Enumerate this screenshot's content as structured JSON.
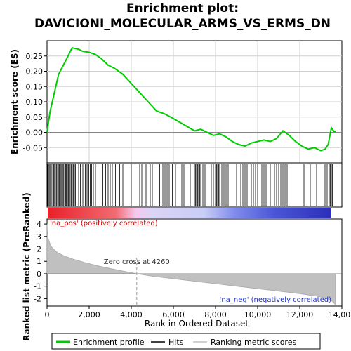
{
  "title_line1": "Enrichment plot:",
  "title_line2": "DAVICIONI_MOLECULAR_ARMS_VS_ERMS_DN",
  "chart_data": [
    {
      "type": "line",
      "name": "enrichment-profile",
      "ylabel": "Enrichment score (ES)",
      "ylim": [
        -0.1,
        0.3
      ],
      "xlim": [
        0,
        14000
      ],
      "yticks": [
        -0.05,
        0.0,
        0.05,
        0.1,
        0.15,
        0.2,
        0.25
      ],
      "ytick_labels": [
        "-0.05",
        "0.00",
        "0.05",
        "0.10",
        "0.15",
        "0.20",
        "0.25"
      ],
      "grid": true,
      "series": [
        {
          "name": "Enrichment profile",
          "color": "#00cc00",
          "x": [
            0,
            60,
            150,
            250,
            350,
            450,
            550,
            700,
            850,
            1000,
            1100,
            1200,
            1300,
            1500,
            1700,
            2000,
            2300,
            2600,
            2900,
            3200,
            3600,
            4000,
            4400,
            4800,
            5200,
            5600,
            6000,
            6500,
            7000,
            7300,
            7600,
            7900,
            8200,
            8500,
            8800,
            9100,
            9400,
            9700,
            10000,
            10300,
            10600,
            10900,
            11200,
            11500,
            11800,
            12100,
            12400,
            12700,
            13000,
            13200,
            13350,
            13500,
            13600,
            13700
          ],
          "y": [
            0.0,
            0.03,
            0.07,
            0.1,
            0.13,
            0.16,
            0.19,
            0.21,
            0.23,
            0.25,
            0.265,
            0.277,
            0.275,
            0.272,
            0.265,
            0.262,
            0.255,
            0.24,
            0.22,
            0.21,
            0.19,
            0.16,
            0.13,
            0.1,
            0.07,
            0.06,
            0.045,
            0.025,
            0.005,
            0.01,
            0.0,
            -0.01,
            -0.005,
            -0.015,
            -0.03,
            -0.04,
            -0.045,
            -0.035,
            -0.03,
            -0.025,
            -0.03,
            -0.02,
            0.005,
            -0.01,
            -0.03,
            -0.045,
            -0.055,
            -0.05,
            -0.06,
            -0.055,
            -0.04,
            0.015,
            0.005,
            0.0
          ]
        }
      ]
    },
    {
      "type": "scatter",
      "name": "hits",
      "legend": "Hits",
      "hit_ranks": [
        20,
        60,
        100,
        140,
        180,
        230,
        280,
        320,
        360,
        400,
        450,
        500,
        540,
        580,
        620,
        660,
        700,
        740,
        790,
        840,
        880,
        920,
        970,
        1020,
        1060,
        1100,
        1150,
        1200,
        1250,
        1300,
        1350,
        1420,
        1500,
        1580,
        1700,
        1820,
        1900,
        1980,
        2050,
        2120,
        2200,
        2300,
        2420,
        2520,
        2650,
        2780,
        2900,
        3000,
        3100,
        3250,
        3450,
        3600,
        4000,
        4400,
        4500,
        4700,
        4900,
        5000,
        5350,
        5500,
        5600,
        5700,
        5800,
        5950,
        6100,
        6400,
        6500,
        6800,
        7000,
        7050,
        7100,
        7150,
        7200,
        7250,
        7300,
        7400,
        7500,
        7800,
        7900,
        8000,
        8050,
        8100,
        8150,
        8200,
        8300,
        8350,
        8400,
        8500,
        8600,
        9000,
        9200,
        9300,
        9400,
        9500,
        9700,
        9800,
        9900,
        10000,
        10200,
        10300,
        10400,
        10600,
        10800,
        10900,
        11000,
        11100,
        11200,
        11300,
        11400,
        12200,
        12500,
        12800,
        13200,
        13300,
        13400,
        13450,
        13500,
        13550
      ]
    },
    {
      "type": "area",
      "name": "ranked-list-metric",
      "legend": "Ranking metric scores",
      "ylabel": "Ranked list metric (PreRanked)",
      "xlabel": "Rank in Ordered Dataset",
      "xlim": [
        0,
        14000
      ],
      "ylim": [
        -2.6,
        4.4
      ],
      "xticks": [
        0,
        2000,
        4000,
        6000,
        8000,
        10000,
        12000,
        14000
      ],
      "xtick_labels": [
        "0",
        "2,000",
        "4,000",
        "6,000",
        "8,000",
        "10,000",
        "12,000",
        "14,000"
      ],
      "yticks": [
        -2,
        -1,
        0,
        1,
        2,
        3,
        4
      ],
      "ytick_labels": [
        "-2",
        "-1",
        "0",
        "1",
        "2",
        "3",
        "4"
      ],
      "zero_cross": 4260,
      "x": [
        0,
        20,
        60,
        120,
        200,
        300,
        500,
        800,
        1200,
        1800,
        2500,
        3200,
        3800,
        4260,
        5000,
        6000,
        7000,
        8000,
        9000,
        10000,
        11000,
        12000,
        12800,
        13200,
        13450,
        13600,
        13700
      ],
      "y": [
        4.0,
        3.3,
        2.8,
        2.5,
        2.2,
        2.0,
        1.7,
        1.45,
        1.2,
        0.9,
        0.6,
        0.35,
        0.15,
        0.0,
        -0.2,
        -0.4,
        -0.6,
        -0.8,
        -1.0,
        -1.2,
        -1.4,
        -1.6,
        -1.8,
        -1.95,
        -2.1,
        -2.3,
        -2.5
      ]
    }
  ],
  "annotations": {
    "zero_cross_label": "Zero cross at 4260",
    "pos_label": "'na_pos' (positively correlated)",
    "neg_label": "'na_neg' (negatively correlated)",
    "pos_color": "#cc0000",
    "neg_color": "#2233cc"
  },
  "legend": {
    "items": [
      {
        "label": "Enrichment profile",
        "color": "#00cc00"
      },
      {
        "label": "Hits",
        "color": "#000000"
      },
      {
        "label": "Ranking metric scores",
        "color": "#c0c0c0"
      }
    ]
  },
  "colors": {
    "es_line": "#00cc00",
    "metric_fill": "#c0c0c0",
    "grid": "#d0d0d0"
  }
}
